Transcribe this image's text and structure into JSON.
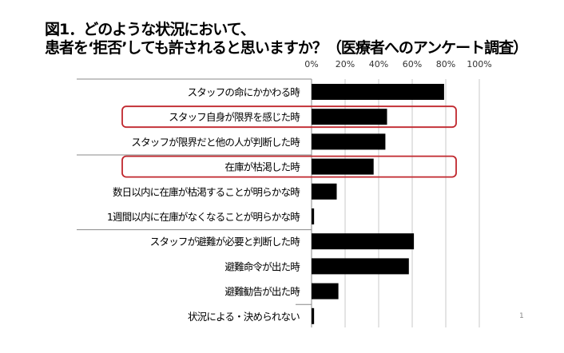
{
  "page_number": "1",
  "chart_data": {
    "type": "bar",
    "orientation": "horizontal",
    "title_line1": "図1．どのような状況において、",
    "title_line2": "患者を‘拒否’しても許されると思いますか？（医療者へのアンケート調査）",
    "xlim": [
      0,
      100
    ],
    "xticks": [
      "0%",
      "20%",
      "40%",
      "60%",
      "80%",
      "100%"
    ],
    "grid": true,
    "categories": [
      "スタッフの命にかかわる時",
      "スタッフ自身が限界を感じた時",
      "スタッフが限界だと他の人が判断した時",
      "在庫が枯渇した時",
      "数日以内に在庫が枯渇することが明らかな時",
      "1週間以内に在庫がなくなることが明らかな時",
      "スタッフが避難が必要と判断した時",
      "避難命令が出た時",
      "避難勧告が出た時",
      "状況による・決められない"
    ],
    "values": [
      79,
      45,
      44,
      37,
      15,
      1.5,
      61,
      58,
      16,
      1.5
    ],
    "highlighted": [
      1,
      3
    ],
    "group_breaks_after": [
      2,
      5,
      8
    ],
    "bar_color": "#000000",
    "highlight_color": "#c0272d"
  }
}
